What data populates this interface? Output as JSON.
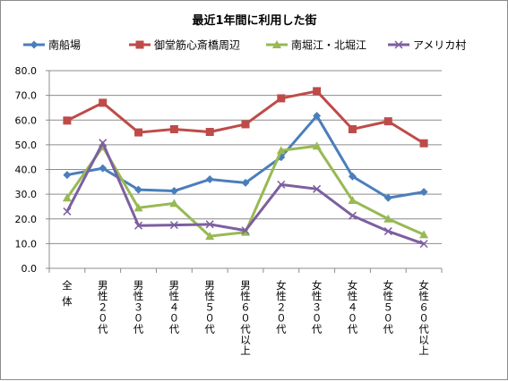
{
  "chart_data": {
    "type": "line",
    "title": "最近1年間に利用した街",
    "xlabel": "",
    "ylabel": "",
    "ylim": [
      0,
      80
    ],
    "ytick_step": 10,
    "ytick_labels": [
      "0.0",
      "10.0",
      "20.0",
      "30.0",
      "40.0",
      "50.0",
      "60.0",
      "70.0",
      "80.0"
    ],
    "grid": true,
    "legend_position": "top",
    "categories": [
      "全体",
      "男性20代",
      "男性30代",
      "男性40代",
      "男性50代",
      "男性60代以上",
      "女性20代",
      "女性30代",
      "女性40代",
      "女性50代",
      "女性60代以上"
    ],
    "category_labels": [
      "全体",
      "男性２０代",
      "男性３０代",
      "男性４０代",
      "男性５０代",
      "男性６０代以上",
      "女性２０代",
      "女性３０代",
      "女性４０代",
      "女性５０代",
      "女性６０代以上"
    ],
    "series": [
      {
        "name": "南船場",
        "color": "#4a7ebb",
        "marker": "diamond",
        "values": [
          37.8,
          40.5,
          31.8,
          31.3,
          36.0,
          34.6,
          45.0,
          61.7,
          37.2,
          28.5,
          30.9
        ]
      },
      {
        "name": "御堂筋心斎橋周辺",
        "color": "#be4b48",
        "marker": "square",
        "values": [
          59.8,
          67.0,
          55.0,
          56.3,
          55.2,
          58.3,
          68.8,
          71.7,
          56.3,
          59.5,
          50.6
        ]
      },
      {
        "name": "南堀江・北堀江",
        "color": "#98b954",
        "marker": "triangle",
        "values": [
          28.5,
          49.2,
          24.5,
          26.3,
          13.0,
          14.6,
          47.7,
          49.5,
          27.5,
          20.0,
          13.6
        ]
      },
      {
        "name": "アメリカ村",
        "color": "#7d5fa0",
        "marker": "x",
        "values": [
          23.0,
          50.8,
          17.3,
          17.5,
          17.8,
          15.3,
          33.9,
          32.1,
          21.3,
          15.0,
          9.9
        ]
      }
    ]
  }
}
